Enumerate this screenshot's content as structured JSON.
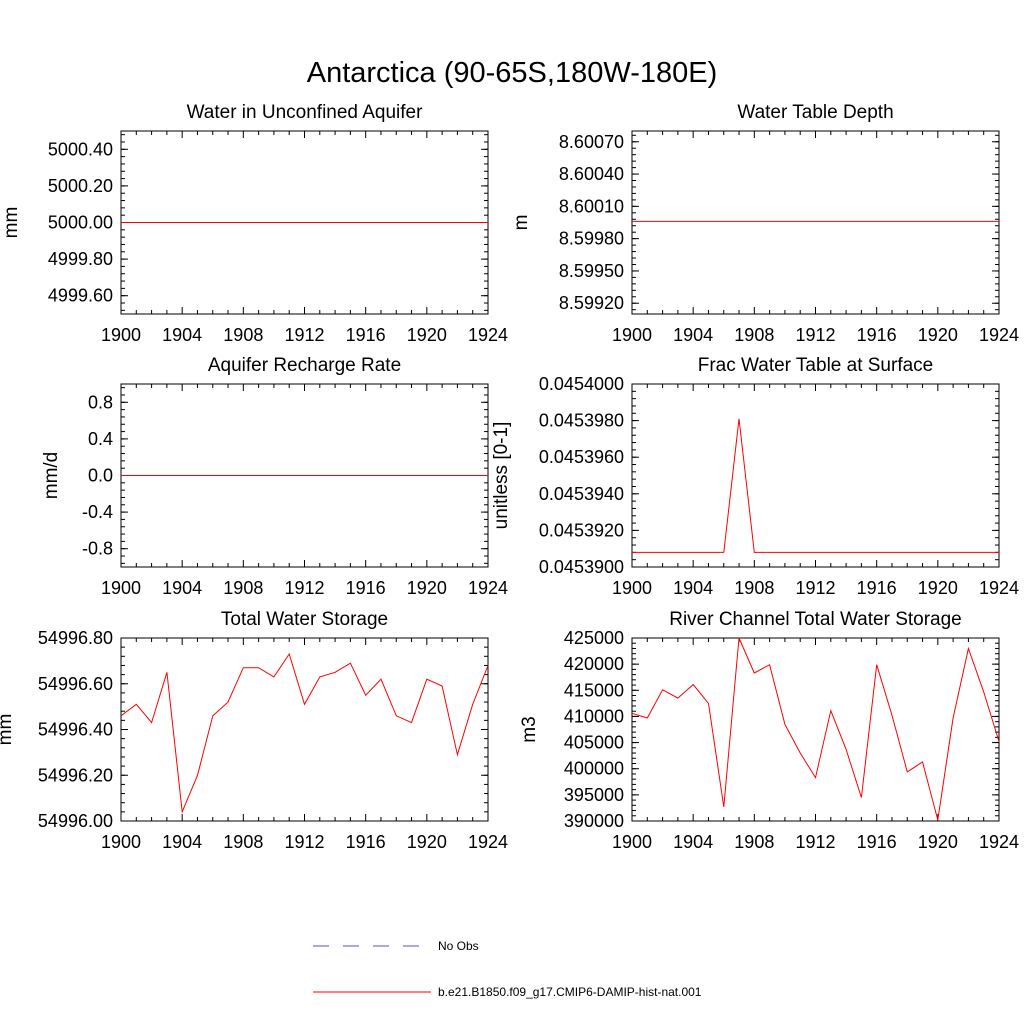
{
  "figure_title": "Antarctica (90-65S,180W-180E)",
  "colors": {
    "model": "#ff0000",
    "obs": "#4d4dff",
    "axis": "#000000"
  },
  "legend": [
    {
      "label": "No Obs",
      "style": "dashed",
      "color": "#4d4dff"
    },
    {
      "label": "b.e21.B1850.f09_g17.CMIP6-DAMIP-hist-nat.001",
      "style": "solid",
      "color": "#ff0000"
    }
  ],
  "chart_data": [
    {
      "type": "line",
      "title": "Water in Unconfined Aquifer",
      "ylabel": "mm",
      "xlim": [
        1900,
        1924
      ],
      "ylim": [
        4999.5,
        5000.5
      ],
      "xticks": [
        "1900",
        "1904",
        "1908",
        "1912",
        "1916",
        "1920",
        "1924"
      ],
      "yticks": [
        4999.6,
        4999.8,
        5000.0,
        5000.2,
        5000.4
      ],
      "yticklabels": [
        "4999.60",
        "4999.80",
        "5000.00",
        "5000.20",
        "5000.40"
      ],
      "x": [
        1900,
        1924
      ],
      "series": [
        {
          "values": [
            5000.0,
            5000.0
          ]
        }
      ]
    },
    {
      "type": "line",
      "title": "Water Table Depth",
      "ylabel": "m",
      "xlim": [
        1900,
        1924
      ],
      "ylim": [
        8.5991,
        8.6008
      ],
      "xticks": [
        "1900",
        "1904",
        "1908",
        "1912",
        "1916",
        "1920",
        "1924"
      ],
      "yticks": [
        8.5992,
        8.5995,
        8.5998,
        8.6001,
        8.6004,
        8.6007
      ],
      "yticklabels": [
        "8.59920",
        "8.59950",
        "8.59980",
        "8.60010",
        "8.60040",
        "8.60070"
      ],
      "x": [
        1900,
        1924
      ],
      "series": [
        {
          "values": [
            8.59996,
            8.59996
          ]
        }
      ]
    },
    {
      "type": "line",
      "title": "Aquifer Recharge Rate",
      "ylabel": "mm/d",
      "xlim": [
        1900,
        1924
      ],
      "ylim": [
        -1.0,
        1.0
      ],
      "xticks": [
        "1900",
        "1904",
        "1908",
        "1912",
        "1916",
        "1920",
        "1924"
      ],
      "yticks": [
        -0.8,
        -0.4,
        0.0,
        0.4,
        0.8
      ],
      "yticklabels": [
        "-0.8",
        "-0.4",
        "0.0",
        "0.4",
        "0.8"
      ],
      "x": [
        1900,
        1924
      ],
      "series": [
        {
          "values": [
            0.0,
            0.0
          ]
        }
      ]
    },
    {
      "type": "line",
      "title": "Frac Water Table at Surface",
      "ylabel": "unitless [0-1]",
      "xlim": [
        1900,
        1924
      ],
      "ylim": [
        0.04539,
        0.0454
      ],
      "xticks": [
        "1900",
        "1904",
        "1908",
        "1912",
        "1916",
        "1920",
        "1924"
      ],
      "yticks": [
        0.04539,
        0.045392,
        0.045394,
        0.045396,
        0.045398,
        0.0454
      ],
      "yticklabels": [
        "0.0453900",
        "0.0453920",
        "0.0453940",
        "0.0453960",
        "0.0453980",
        "0.0454000"
      ],
      "x": [
        1900,
        1901,
        1902,
        1903,
        1904,
        1905,
        1906,
        1907,
        1908,
        1909,
        1910,
        1911,
        1912,
        1913,
        1914,
        1915,
        1916,
        1917,
        1918,
        1919,
        1920,
        1921,
        1922,
        1923,
        1924
      ],
      "series": [
        {
          "values": [
            0.0453908,
            0.0453908,
            0.0453908,
            0.0453908,
            0.0453908,
            0.0453908,
            0.0453908,
            0.0453981,
            0.0453908,
            0.0453908,
            0.0453908,
            0.0453908,
            0.0453908,
            0.0453908,
            0.0453908,
            0.0453908,
            0.0453908,
            0.0453908,
            0.0453908,
            0.0453908,
            0.0453908,
            0.0453908,
            0.0453908,
            0.0453908,
            0.0453908
          ]
        }
      ]
    },
    {
      "type": "line",
      "title": "Total Water Storage",
      "ylabel": "mm",
      "xlim": [
        1900,
        1924
      ],
      "ylim": [
        54996.0,
        54996.8
      ],
      "xticks": [
        "1900",
        "1904",
        "1908",
        "1912",
        "1916",
        "1920",
        "1924"
      ],
      "yticks": [
        54996.0,
        54996.2,
        54996.4,
        54996.6,
        54996.8
      ],
      "yticklabels": [
        "54996.00",
        "54996.20",
        "54996.40",
        "54996.60",
        "54996.80"
      ],
      "x": [
        1900,
        1901,
        1902,
        1903,
        1904,
        1905,
        1906,
        1907,
        1908,
        1909,
        1910,
        1911,
        1912,
        1913,
        1914,
        1915,
        1916,
        1917,
        1918,
        1919,
        1920,
        1921,
        1922,
        1923,
        1924
      ],
      "series": [
        {
          "values": [
            54996.46,
            54996.51,
            54996.43,
            54996.65,
            54996.04,
            54996.2,
            54996.46,
            54996.52,
            54996.67,
            54996.67,
            54996.63,
            54996.73,
            54996.51,
            54996.63,
            54996.65,
            54996.69,
            54996.55,
            54996.62,
            54996.46,
            54996.43,
            54996.62,
            54996.59,
            54996.29,
            54996.51,
            54996.68
          ]
        }
      ]
    },
    {
      "type": "line",
      "title": "River Channel Total Water Storage",
      "ylabel": "m3",
      "xlim": [
        1900,
        1924
      ],
      "ylim": [
        390000,
        425000
      ],
      "xticks": [
        "1900",
        "1904",
        "1908",
        "1912",
        "1916",
        "1920",
        "1924"
      ],
      "yticks": [
        390000,
        395000,
        400000,
        405000,
        410000,
        415000,
        420000,
        425000
      ],
      "yticklabels": [
        "390000",
        "395000",
        "400000",
        "405000",
        "410000",
        "415000",
        "420000",
        "425000"
      ],
      "x": [
        1900,
        1901,
        1902,
        1903,
        1904,
        1905,
        1906,
        1907,
        1908,
        1909,
        1910,
        1911,
        1912,
        1913,
        1914,
        1915,
        1916,
        1917,
        1918,
        1919,
        1920,
        1921,
        1922,
        1923,
        1924
      ],
      "series": [
        {
          "values": [
            410600,
            409700,
            415100,
            413500,
            416100,
            412500,
            392700,
            425000,
            418300,
            419900,
            408500,
            403000,
            398300,
            411100,
            403700,
            394500,
            419900,
            410200,
            399400,
            401300,
            390200,
            409700,
            423000,
            414700,
            405200
          ]
        }
      ]
    }
  ]
}
